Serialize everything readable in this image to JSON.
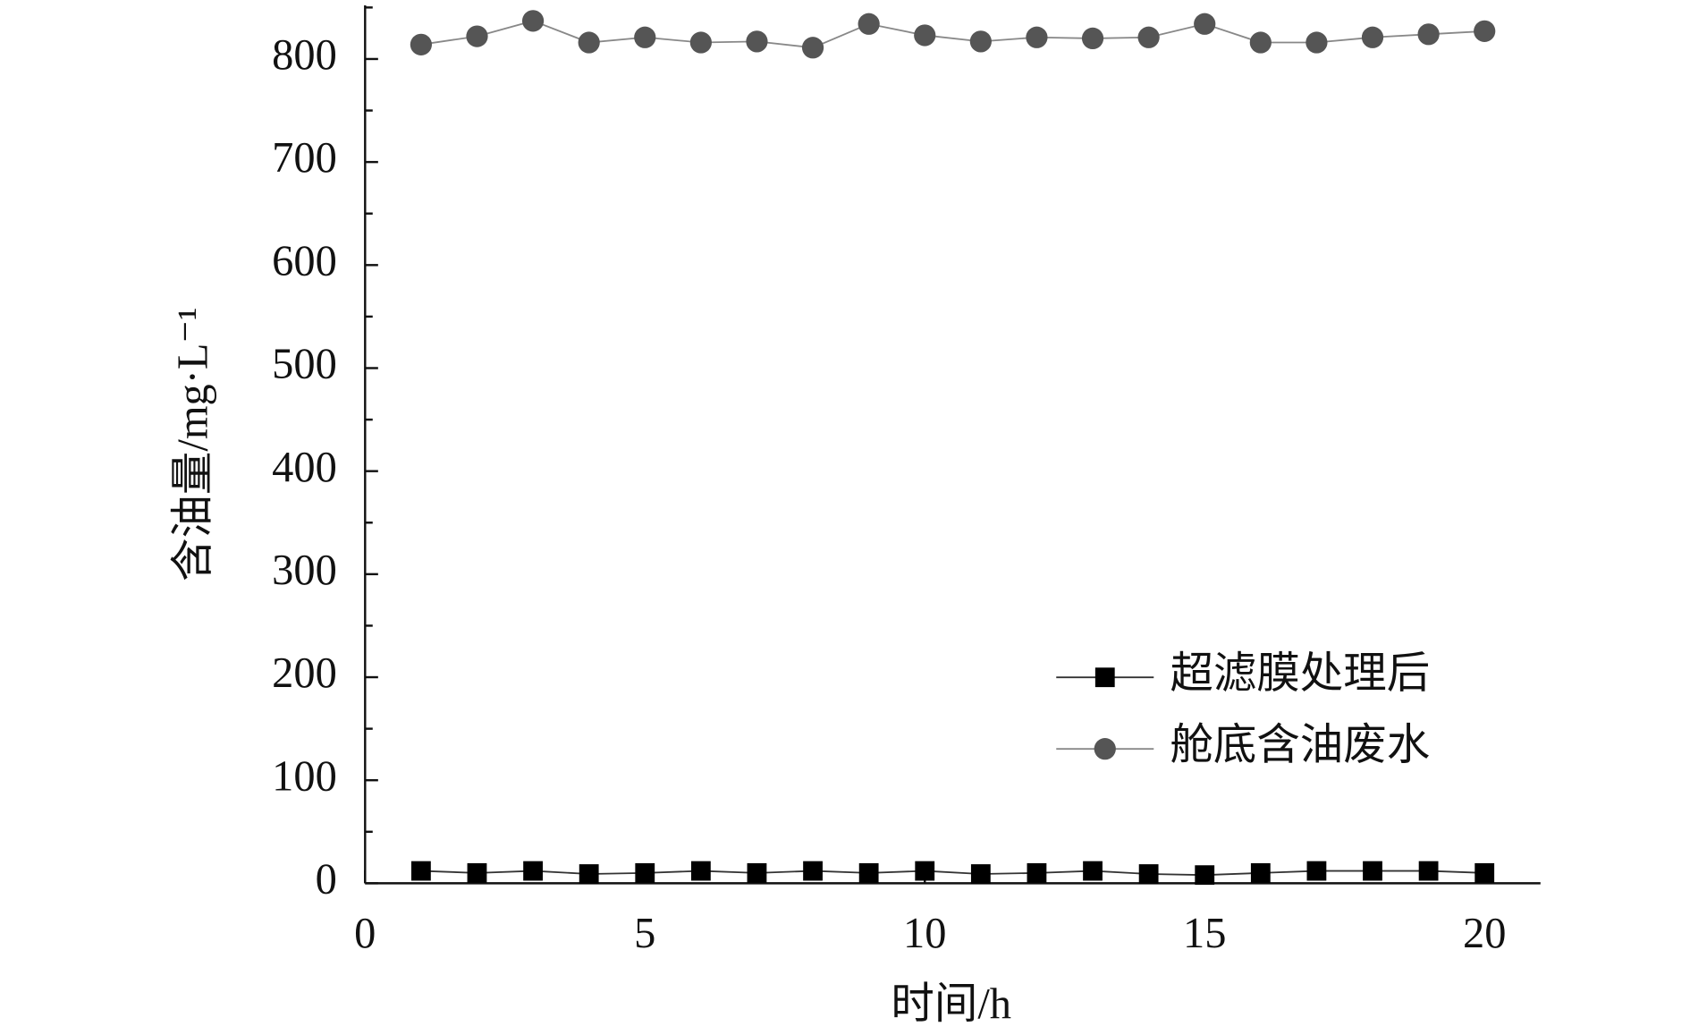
{
  "chart_data": {
    "type": "line",
    "x_label": "时间/h",
    "y_label": "含油量/mg·L⁻¹",
    "x": [
      1,
      2,
      3,
      4,
      5,
      6,
      7,
      8,
      9,
      10,
      11,
      12,
      13,
      14,
      15,
      16,
      17,
      18,
      19,
      20
    ],
    "series": [
      {
        "name": "超滤膜处理后",
        "color": "#000000",
        "line_color": "#333333",
        "marker": "square",
        "values": [
          12,
          10,
          12,
          9,
          10,
          12,
          10,
          12,
          10,
          12,
          9,
          10,
          12,
          9,
          8,
          10,
          12,
          12,
          12,
          10
        ]
      },
      {
        "name": "舱底含油废水",
        "color": "#555555",
        "line_color": "#888888",
        "marker": "circle",
        "values": [
          814,
          822,
          837,
          816,
          821,
          816,
          817,
          811,
          834,
          823,
          817,
          821,
          820,
          821,
          834,
          816,
          816,
          821,
          824,
          827
        ]
      }
    ],
    "xlim": [
      0,
      21
    ],
    "xticks": [
      0,
      5,
      10,
      15,
      20
    ],
    "ylim": [
      0,
      852
    ],
    "yticks": [
      0,
      100,
      200,
      300,
      400,
      500,
      600,
      700,
      800
    ],
    "y_minor_ticks": [
      50,
      150,
      250,
      350,
      450,
      550,
      650,
      750,
      850
    ],
    "legend": "lower right",
    "grid": false
  }
}
